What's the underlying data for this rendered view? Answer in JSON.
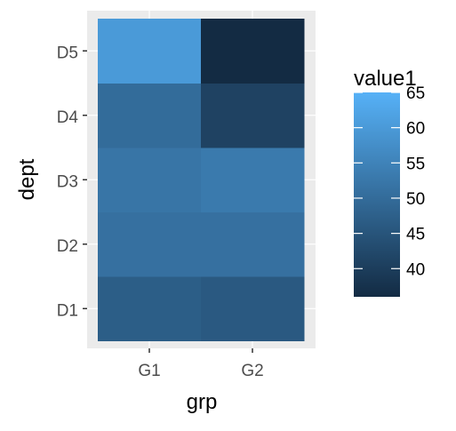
{
  "chart_data": {
    "type": "heatmap",
    "xlabel": "grp",
    "ylabel": "dept",
    "x_categories": [
      "G1",
      "G2"
    ],
    "y_categories": [
      "D1",
      "D2",
      "D3",
      "D4",
      "D5"
    ],
    "values": [
      {
        "x": "G1",
        "y": "D1",
        "value": 47
      },
      {
        "x": "G2",
        "y": "D1",
        "value": 46
      },
      {
        "x": "G1",
        "y": "D2",
        "value": 51
      },
      {
        "x": "G2",
        "y": "D2",
        "value": 51
      },
      {
        "x": "G1",
        "y": "D3",
        "value": 52
      },
      {
        "x": "G2",
        "y": "D3",
        "value": 53
      },
      {
        "x": "G1",
        "y": "D4",
        "value": 50
      },
      {
        "x": "G2",
        "y": "D4",
        "value": 41
      },
      {
        "x": "G1",
        "y": "D5",
        "value": 60
      },
      {
        "x": "G2",
        "y": "D5",
        "value": 36
      }
    ],
    "legend": {
      "title": "value1",
      "ticks": [
        40,
        45,
        50,
        55,
        60,
        65
      ],
      "range": [
        36,
        65
      ],
      "position": "right"
    },
    "color_low": "#132B43",
    "color_high": "#56B1F7",
    "panel_background": "#EBEBEB",
    "grid": true
  }
}
